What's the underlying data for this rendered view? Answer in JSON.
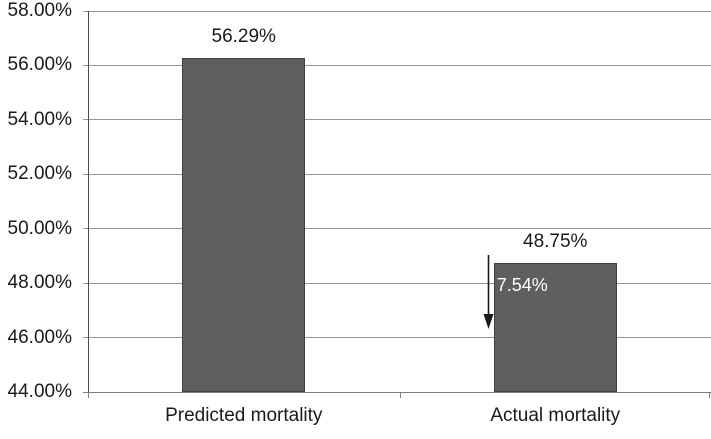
{
  "chart_data": {
    "type": "bar",
    "title": "",
    "xlabel": "",
    "ylabel": "",
    "categories": [
      "Predicted mortality",
      "Actual mortality"
    ],
    "values": [
      56.29,
      48.75
    ],
    "data_labels": [
      "56.29%",
      "48.75%"
    ],
    "ylim": [
      44,
      58
    ],
    "ytick_step": 2,
    "yticks": [
      {
        "value": 58,
        "label": "58.00%"
      },
      {
        "value": 56,
        "label": "56.00%"
      },
      {
        "value": 54,
        "label": "54.00%"
      },
      {
        "value": 52,
        "label": "52.00%"
      },
      {
        "value": 50,
        "label": "50.00%"
      },
      {
        "value": 48,
        "label": "48.00%"
      },
      {
        "value": 46,
        "label": "46.00%"
      },
      {
        "value": 44,
        "label": "44.00%"
      }
    ],
    "grid": true,
    "legend": false,
    "annotation": {
      "text": "7.54%",
      "bar_index": 1,
      "direction": "down",
      "arrow_icon": "down-arrow-icon"
    },
    "colors": {
      "background": "#FFFFFF",
      "bar_fill": "#5F5F5F",
      "bar_border": "#404040",
      "gridline": "#969696",
      "x_axis": "#7F7F7F",
      "y_axis": "#4D4D4D",
      "tick": "#7F7F7F",
      "text": "#1A1A1A",
      "annotation_text": "#FFFFFF",
      "arrow": "#1A1A1A"
    }
  }
}
